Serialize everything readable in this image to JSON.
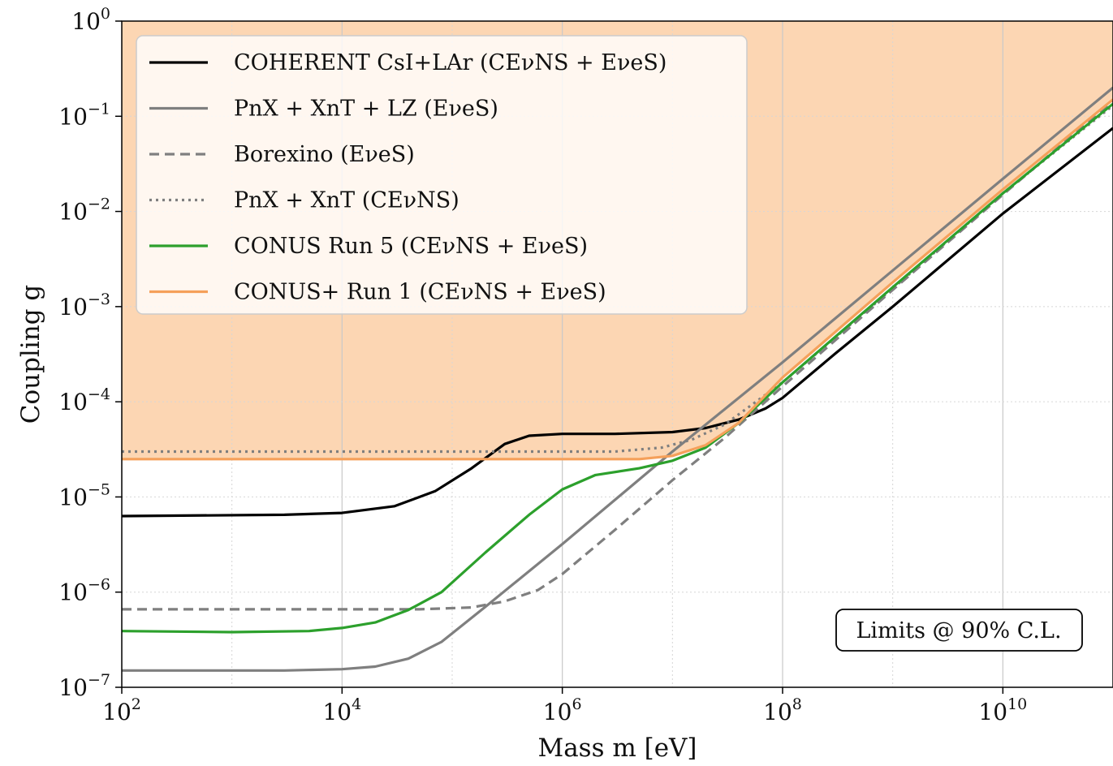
{
  "chart_data": {
    "type": "line",
    "title": "",
    "xlabel": "Mass m [eV]",
    "ylabel": "Coupling g",
    "xscale": "log",
    "yscale": "log",
    "xlim": [
      100,
      100000000000.0
    ],
    "ylim": [
      1e-07,
      1
    ],
    "x_ticks": [
      {
        "value": 100,
        "base": "10",
        "exp": "2"
      },
      {
        "value": 10000,
        "base": "10",
        "exp": "4"
      },
      {
        "value": 1000000,
        "base": "10",
        "exp": "6"
      },
      {
        "value": 100000000,
        "base": "10",
        "exp": "8"
      },
      {
        "value": 10000000000,
        "base": "10",
        "exp": "10"
      }
    ],
    "y_ticks": [
      {
        "value": 1e-07,
        "base": "10",
        "exp": "−7"
      },
      {
        "value": 1e-06,
        "base": "10",
        "exp": "−6"
      },
      {
        "value": 1e-05,
        "base": "10",
        "exp": "−5"
      },
      {
        "value": 0.0001,
        "base": "10",
        "exp": "−4"
      },
      {
        "value": 0.001,
        "base": "10",
        "exp": "−3"
      },
      {
        "value": 0.01,
        "base": "10",
        "exp": "−2"
      },
      {
        "value": 0.1,
        "base": "10",
        "exp": "−1"
      },
      {
        "value": 1,
        "base": "10",
        "exp": "0"
      }
    ],
    "grid": true,
    "legend_position": "top-left",
    "annotation": "Limits @ 90% C.L.",
    "shaded_region": {
      "series": "CONUS+ Run 1 (CEνNS + EνeS)",
      "fill": "above",
      "color": "#fcd6b3"
    },
    "series": [
      {
        "name": "COHERENT CsI+LAr (CEνNS + EνeS)",
        "color": "#000000",
        "style": "solid",
        "points": [
          [
            100,
            6.3e-06
          ],
          [
            3000,
            6.5e-06
          ],
          [
            10000,
            6.8e-06
          ],
          [
            30000,
            8e-06
          ],
          [
            70000,
            1.15e-05
          ],
          [
            150000,
            2e-05
          ],
          [
            300000,
            3.6e-05
          ],
          [
            500000,
            4.4e-05
          ],
          [
            1000000,
            4.6e-05
          ],
          [
            3000000,
            4.6e-05
          ],
          [
            10000000,
            4.8e-05
          ],
          [
            20000000,
            5.3e-05
          ],
          [
            40000000,
            6.5e-05
          ],
          [
            70000000,
            8.5e-05
          ],
          [
            100000000,
            0.00011
          ],
          [
            300000000,
            0.00032
          ],
          [
            1000000000,
            0.001
          ],
          [
            10000000000,
            0.0095
          ],
          [
            100000000000,
            0.075
          ]
        ]
      },
      {
        "name": "PnX + XnT + LZ (EνeS)",
        "color": "#7f7f7f",
        "style": "solid",
        "points": [
          [
            100,
            1.5e-07
          ],
          [
            3000,
            1.5e-07
          ],
          [
            10000,
            1.55e-07
          ],
          [
            20000,
            1.65e-07
          ],
          [
            40000,
            2e-07
          ],
          [
            80000,
            3e-07
          ],
          [
            200000,
            7e-07
          ],
          [
            1000000,
            3.2e-06
          ],
          [
            10000000,
            3e-05
          ],
          [
            100000000,
            0.00026
          ],
          [
            1000000000,
            0.0024
          ],
          [
            10000000000,
            0.022
          ],
          [
            100000000000,
            0.2
          ]
        ]
      },
      {
        "name": "Borexino (EνeS)",
        "color": "#7f7f7f",
        "style": "dashed",
        "points": [
          [
            100,
            6.6e-07
          ],
          [
            50000,
            6.6e-07
          ],
          [
            150000,
            6.9e-07
          ],
          [
            300000,
            8e-07
          ],
          [
            600000,
            1.05e-06
          ],
          [
            1000000,
            1.55e-06
          ],
          [
            3000000,
            4.5e-06
          ],
          [
            10000000,
            1.5e-05
          ],
          [
            30000000,
            4.2e-05
          ],
          [
            100000000,
            0.000145
          ],
          [
            1000000000,
            0.0015
          ],
          [
            10000000000,
            0.015
          ],
          [
            100000000000,
            0.145
          ]
        ]
      },
      {
        "name": "PnX + XnT (CEνNS)",
        "color": "#7f7f7f",
        "style": "dotted",
        "points": [
          [
            100,
            3e-05
          ],
          [
            3000000,
            3e-05
          ],
          [
            8000000,
            3.3e-05
          ],
          [
            15000000,
            4e-05
          ],
          [
            30000000,
            5.8e-05
          ],
          [
            100000000,
            0.00016
          ],
          [
            1000000000,
            0.00155
          ],
          [
            10000000000,
            0.0155
          ],
          [
            100000000000,
            0.13
          ]
        ]
      },
      {
        "name": "CONUS Run 5 (CEνNS + EνeS)",
        "color": "#2ca02c",
        "style": "solid",
        "points": [
          [
            100,
            3.9e-07
          ],
          [
            1000,
            3.8e-07
          ],
          [
            5000,
            3.9e-07
          ],
          [
            10000,
            4.2e-07
          ],
          [
            20000,
            4.8e-07
          ],
          [
            40000,
            6.5e-07
          ],
          [
            80000,
            1e-06
          ],
          [
            200000,
            2.6e-06
          ],
          [
            500000,
            6.5e-06
          ],
          [
            1000000,
            1.2e-05
          ],
          [
            2000000,
            1.7e-05
          ],
          [
            5000000,
            2e-05
          ],
          [
            10000000,
            2.4e-05
          ],
          [
            20000000,
            3.3e-05
          ],
          [
            40000000,
            6e-05
          ],
          [
            100000000,
            0.00016
          ],
          [
            1000000000,
            0.0016
          ],
          [
            10000000000,
            0.0155
          ],
          [
            100000000000,
            0.135
          ]
        ]
      },
      {
        "name": "CONUS+ Run 1 (CEνNS + EνeS)",
        "color": "#f5a05a",
        "style": "solid",
        "points": [
          [
            100,
            2.5e-05
          ],
          [
            5000000,
            2.5e-05
          ],
          [
            10000000,
            2.7e-05
          ],
          [
            20000000,
            3.5e-05
          ],
          [
            40000000,
            6e-05
          ],
          [
            100000000,
            0.00018
          ],
          [
            1000000000,
            0.0018
          ],
          [
            10000000000,
            0.017
          ],
          [
            100000000000,
            0.15
          ]
        ]
      }
    ]
  }
}
